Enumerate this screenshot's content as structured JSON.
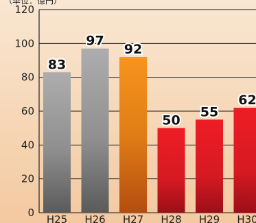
{
  "chart_data": {
    "type": "bar",
    "unit_label": "（単位：億円）",
    "categories": [
      "H25",
      "H26",
      "H27",
      "H28",
      "H29",
      "H30"
    ],
    "values": [
      83,
      97,
      92,
      50,
      55,
      62
    ],
    "ylim": [
      0,
      120
    ],
    "yticks": [
      "0",
      "20",
      "40",
      "60",
      "80",
      "100",
      "120"
    ],
    "grid": true,
    "colors": [
      "gray",
      "gray",
      "orange",
      "red",
      "red",
      "red"
    ]
  }
}
